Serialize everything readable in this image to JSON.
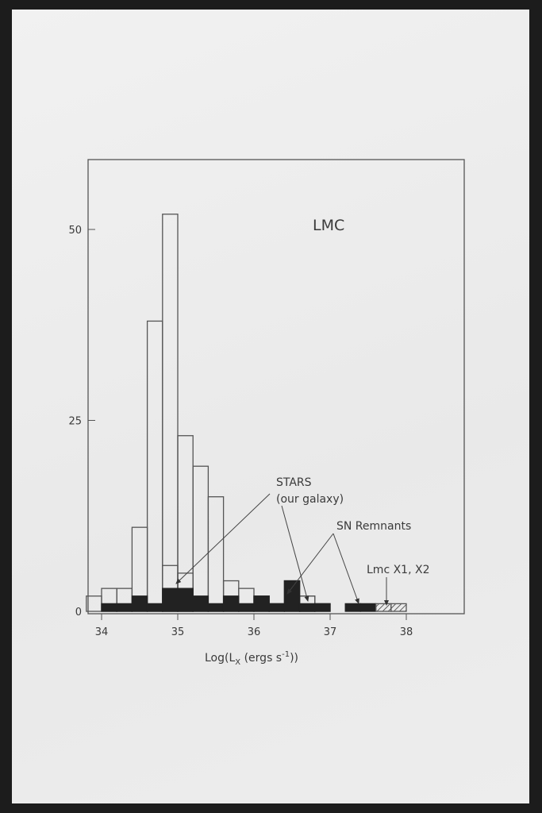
{
  "chart_data": {
    "type": "bar",
    "title": "LMC",
    "xlabel": "Log(L_X (ergs s^-1))",
    "xlabel_parts": {
      "pre": "Log(L",
      "sub": "X",
      "mid": " (ergs s",
      "sup": "-1",
      "post": "))"
    },
    "ylabel": "",
    "xlim": [
      33.8,
      39.0
    ],
    "ylim": [
      0,
      60
    ],
    "x_ticks": [
      "34",
      "35",
      "36",
      "37",
      "38"
    ],
    "y_ticks": [
      "0",
      "25",
      "50"
    ],
    "bin_width": 0.2,
    "grid": false,
    "series": [
      {
        "style": "open-outline",
        "bin_starts": [
          33.8,
          34.0,
          34.2,
          34.4,
          34.6,
          34.8,
          35.0,
          35.2,
          35.4,
          35.6,
          35.8,
          36.0,
          36.2,
          36.4,
          36.6,
          36.8
        ],
        "values": [
          2,
          3,
          3,
          11,
          38,
          52,
          23,
          19,
          15,
          4,
          3,
          2,
          1,
          4,
          2,
          1
        ]
      },
      {
        "style": "open-inner",
        "bin_starts": [
          34.8,
          35.0,
          36.6
        ],
        "values": [
          6,
          5,
          2
        ]
      },
      {
        "style": "filled",
        "bin_starts": [
          34.0,
          34.2,
          34.4,
          34.6,
          34.8,
          35.0,
          35.2,
          35.4,
          35.6,
          35.8,
          36.0,
          36.2,
          36.4,
          36.6,
          36.8,
          37.2,
          37.4
        ],
        "values": [
          1,
          1,
          2,
          1,
          3,
          3,
          2,
          1,
          2,
          1,
          2,
          1,
          4,
          1,
          1,
          1,
          1
        ]
      },
      {
        "style": "hatched",
        "bin_starts": [
          37.6,
          37.8
        ],
        "values": [
          1,
          1
        ]
      }
    ],
    "annotations": {
      "stars": "STARS",
      "stars_sub": "(our galaxy)",
      "snr": "SN Remnants",
      "lmc": "Lmc X1, X2"
    }
  }
}
